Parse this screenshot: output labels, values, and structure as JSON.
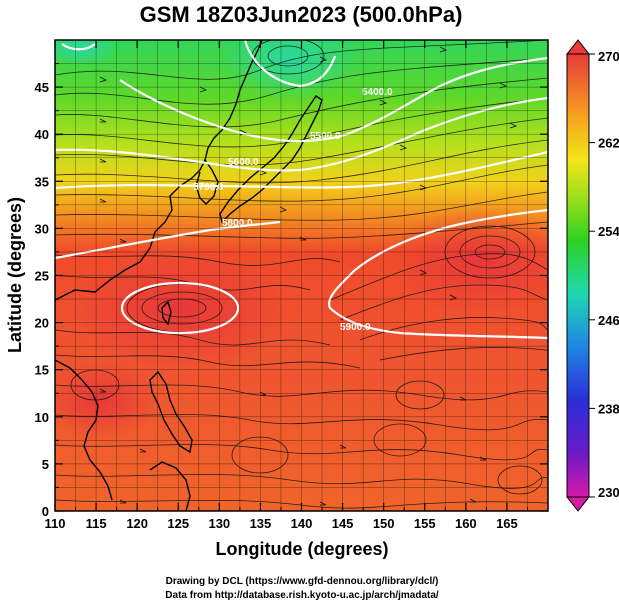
{
  "title": "GSM 18Z03Jun2023 (500.0hPa)",
  "x_axis": {
    "label": "Longitude (degrees)",
    "ticks": [
      "110",
      "115",
      "120",
      "125",
      "130",
      "135",
      "140",
      "145",
      "150",
      "155",
      "160",
      "165"
    ]
  },
  "y_axis": {
    "label": "Latitude  (degrees)",
    "ticks": [
      "0",
      "5",
      "10",
      "15",
      "20",
      "25",
      "30",
      "35",
      "40",
      "45"
    ]
  },
  "colorbar": {
    "ticks": [
      "230",
      "238",
      "246",
      "254",
      "262",
      "270"
    ],
    "colors": [
      "#d61aa8",
      "#3b1fd0",
      "#1f7fe0",
      "#1ed9b0",
      "#2ed11f",
      "#9fe01a",
      "#f3e51a",
      "#f7a21f",
      "#f25a2a",
      "#e83a3a"
    ]
  },
  "contours": [
    {
      "label": "5900.0"
    },
    {
      "label": "5800.0"
    },
    {
      "label": "5700.0"
    },
    {
      "label": "5600.0"
    },
    {
      "label": "5500.0"
    }
  ],
  "credits": {
    "line1": "Drawing by DCL (https://www.gfd-dennou.org/library/dcl/)",
    "line2": "Data from http://database.rish.kyoto-u.ac.jp/arch/jmadata/"
  }
}
